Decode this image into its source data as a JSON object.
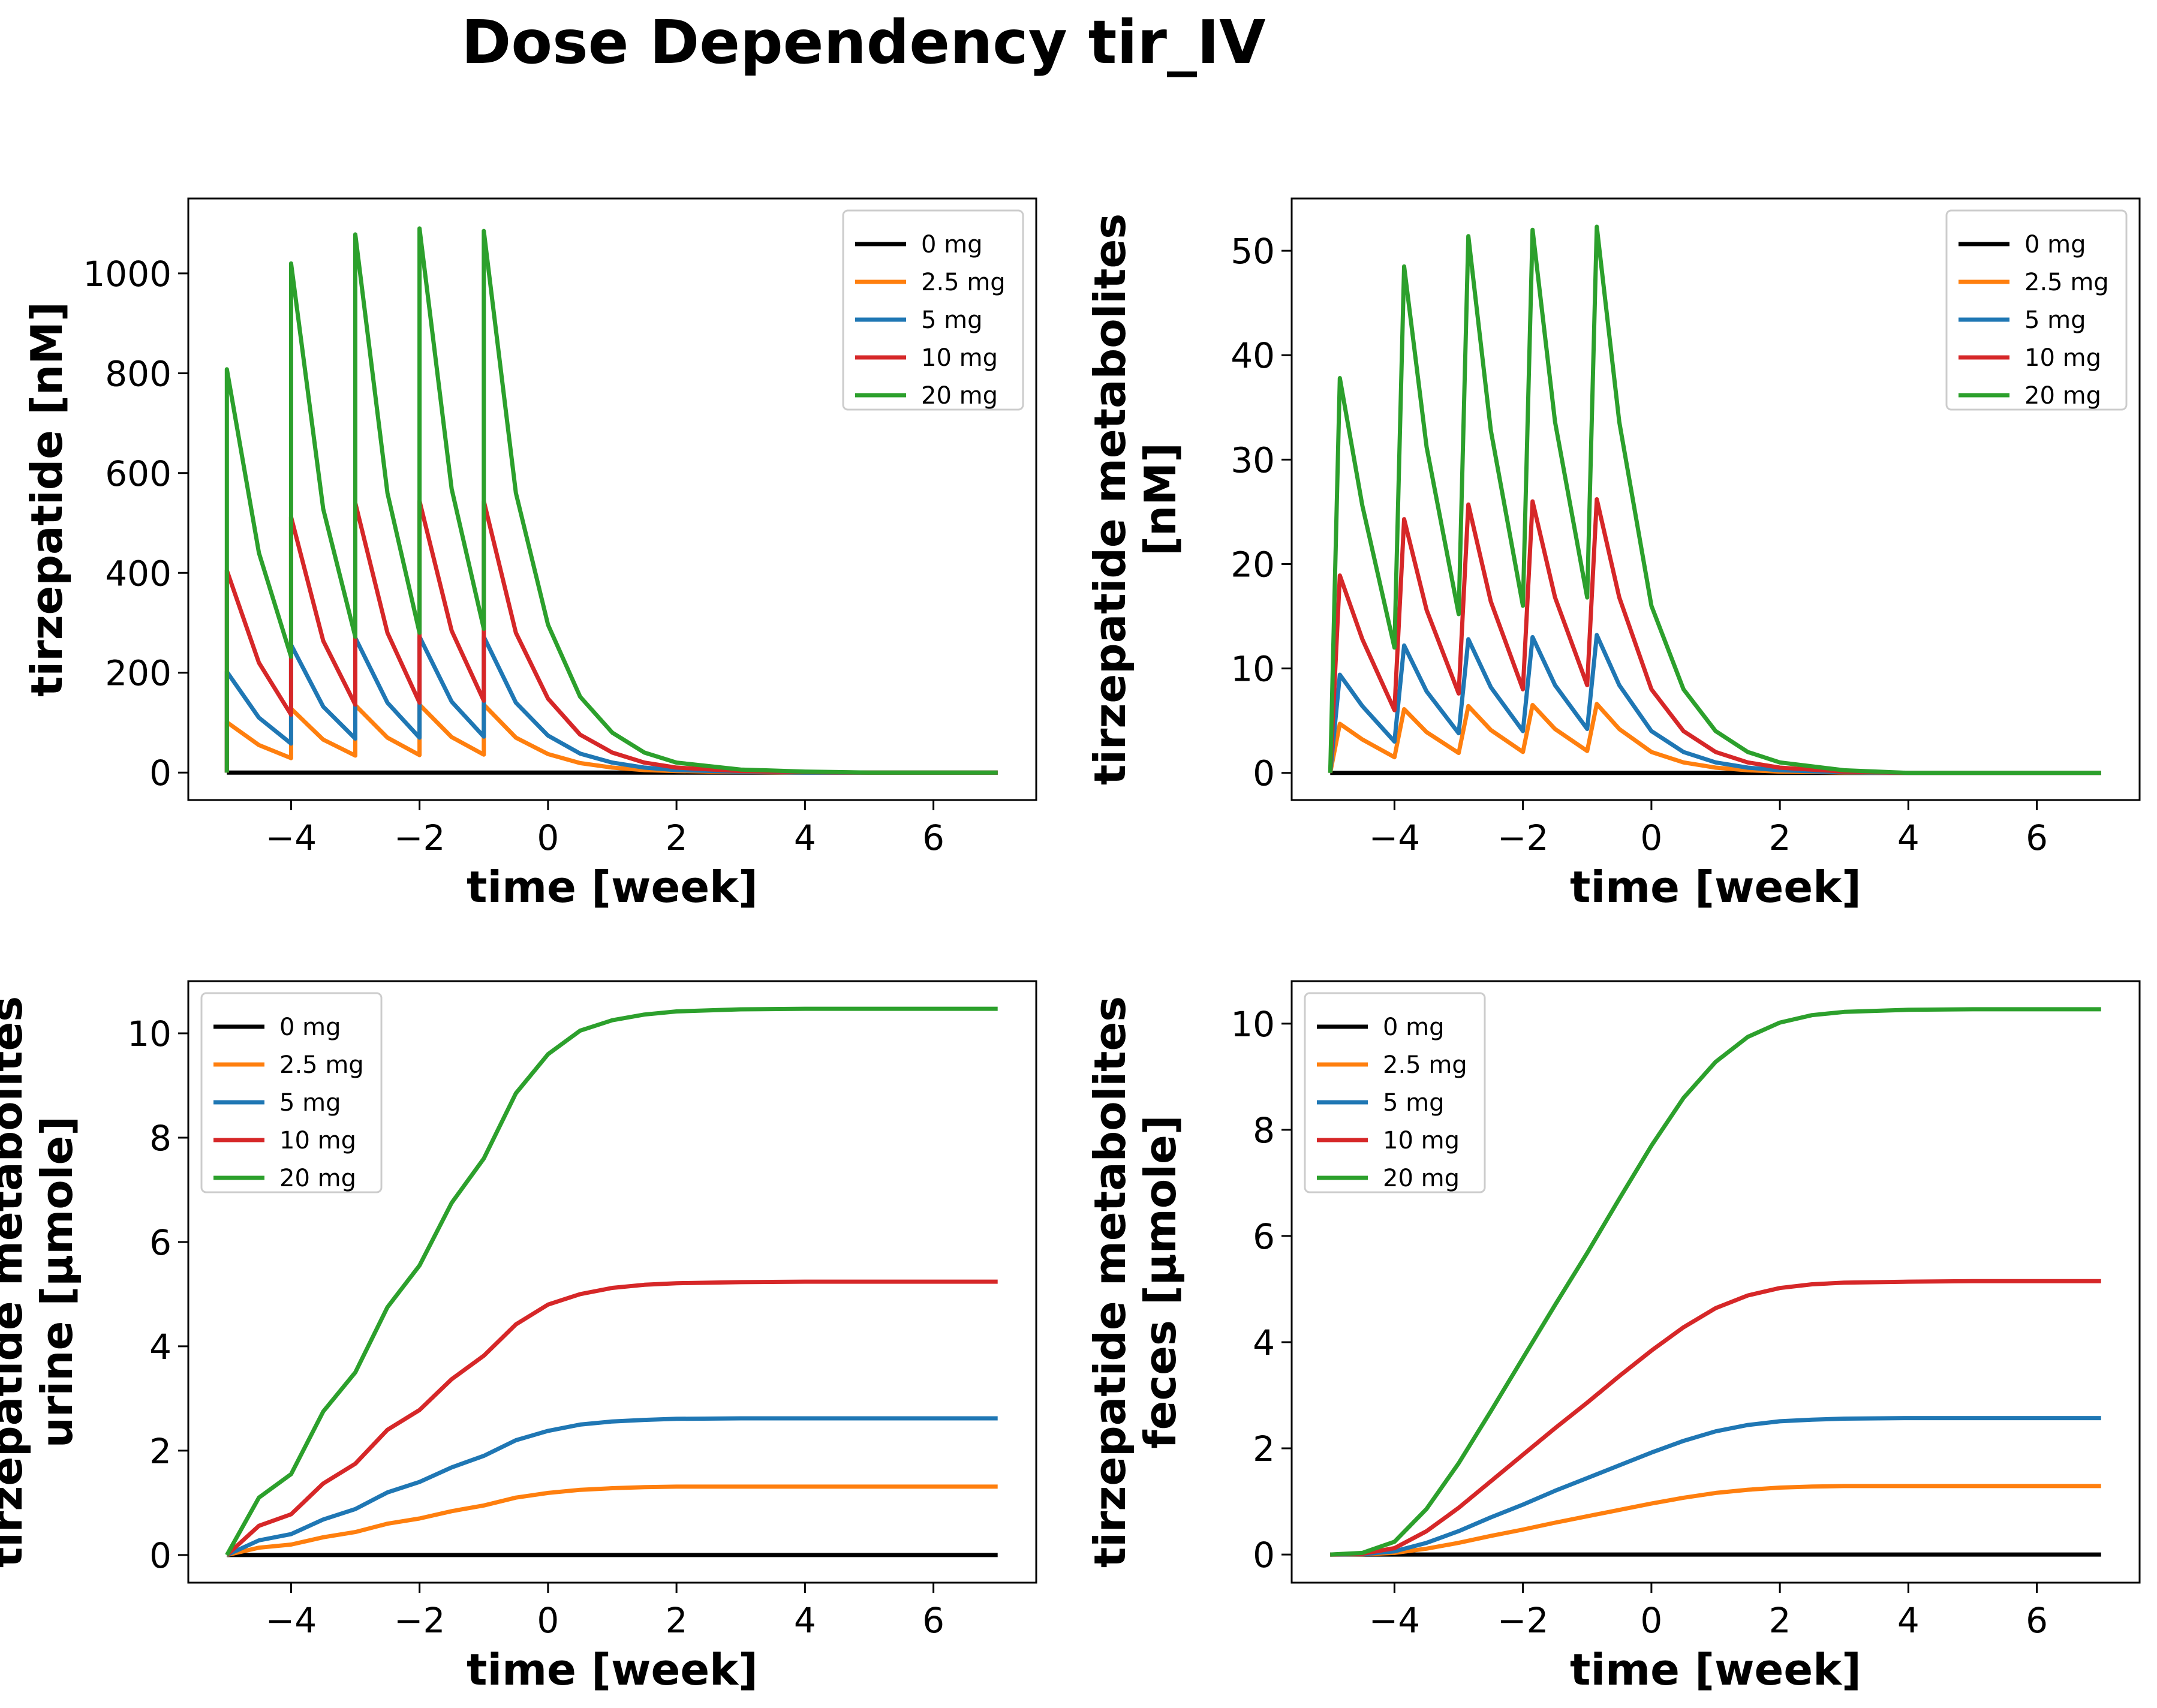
{
  "figure": {
    "title": "Dose Dependency tir_IV"
  },
  "series_meta": [
    {
      "name": "0 mg",
      "color": "#000000"
    },
    {
      "name": "2.5 mg",
      "color": "#ff7f0e"
    },
    {
      "name": "5 mg",
      "color": "#1f77b4"
    },
    {
      "name": "10 mg",
      "color": "#d62728"
    },
    {
      "name": "20 mg",
      "color": "#2ca02c"
    }
  ],
  "chart_data": [
    {
      "type": "line",
      "xlabel": "time [week]",
      "ylabel": [
        "tirzepatide [nM]"
      ],
      "xlim": [
        -5.6,
        7.6
      ],
      "ylim": [
        -55,
        1150
      ],
      "xticks": [
        -4,
        -2,
        0,
        2,
        4,
        6
      ],
      "xtick_labels": [
        "−4",
        "−2",
        "0",
        "2",
        "4",
        "6"
      ],
      "yticks": [
        0,
        200,
        400,
        600,
        800,
        1000
      ],
      "ytick_labels": [
        "0",
        "200",
        "400",
        "600",
        "800",
        "1000"
      ],
      "legend": "top-right",
      "series": [
        {
          "name": "0 mg",
          "x": [
            -5,
            7
          ],
          "y": [
            0,
            0
          ]
        },
        {
          "name": "2.5 mg",
          "x": [
            -5.0,
            -5.0,
            -4.5,
            -4.0,
            -4.0,
            -3.5,
            -3.0,
            -3.0,
            -2.5,
            -2.0,
            -2.0,
            -1.5,
            -1.0,
            -1.0,
            -0.5,
            0.0,
            0.5,
            1.0,
            1.5,
            2.0,
            3.0,
            4.0,
            5.0,
            7.0
          ],
          "y": [
            0,
            101,
            55,
            29,
            128,
            66,
            34,
            135,
            70,
            35,
            136,
            71,
            36,
            136,
            70,
            37,
            19,
            10,
            5,
            3,
            1,
            0,
            0,
            0
          ]
        },
        {
          "name": "5 mg",
          "x": [
            -5.0,
            -5.0,
            -4.5,
            -4.0,
            -4.0,
            -3.5,
            -3.0,
            -3.0,
            -2.5,
            -2.0,
            -2.0,
            -1.5,
            -1.0,
            -1.0,
            -0.5,
            0.0,
            0.5,
            1.0,
            1.5,
            2.0,
            3.0,
            4.0,
            5.0,
            7.0
          ],
          "y": [
            0,
            202,
            110,
            58,
            256,
            132,
            68,
            270,
            140,
            70,
            272,
            142,
            72,
            272,
            140,
            74,
            38,
            20,
            10,
            5,
            2,
            0,
            0,
            0
          ]
        },
        {
          "name": "10 mg",
          "x": [
            -5.0,
            -5.0,
            -4.5,
            -4.0,
            -4.0,
            -3.5,
            -3.0,
            -3.0,
            -2.5,
            -2.0,
            -2.0,
            -1.5,
            -1.0,
            -1.0,
            -0.5,
            0.0,
            0.5,
            1.0,
            1.5,
            2.0,
            3.0,
            4.0,
            5.0,
            7.0
          ],
          "y": [
            0,
            405,
            220,
            116,
            512,
            264,
            136,
            540,
            280,
            140,
            544,
            284,
            144,
            544,
            280,
            148,
            76,
            40,
            20,
            10,
            3,
            1,
            0,
            0
          ]
        },
        {
          "name": "20 mg",
          "x": [
            -5.0,
            -5.0,
            -4.5,
            -4.0,
            -4.0,
            -3.5,
            -3.0,
            -3.0,
            -2.5,
            -2.0,
            -2.0,
            -1.5,
            -1.0,
            -1.0,
            -0.5,
            0.0,
            0.5,
            1.0,
            1.5,
            2.0,
            3.0,
            4.0,
            5.0,
            7.0
          ],
          "y": [
            0,
            808,
            440,
            232,
            1020,
            528,
            272,
            1078,
            560,
            280,
            1090,
            568,
            288,
            1085,
            560,
            296,
            152,
            80,
            40,
            20,
            6,
            2,
            0,
            0
          ]
        }
      ]
    },
    {
      "type": "line",
      "xlabel": "time [week]",
      "ylabel": [
        "tirzepatide metabolites",
        "[nM]"
      ],
      "xlim": [
        -5.6,
        7.6
      ],
      "ylim": [
        -2.6,
        55
      ],
      "xticks": [
        -4,
        -2,
        0,
        2,
        4,
        6
      ],
      "xtick_labels": [
        "−4",
        "−2",
        "0",
        "2",
        "4",
        "6"
      ],
      "yticks": [
        0,
        10,
        20,
        30,
        40,
        50
      ],
      "ytick_labels": [
        "0",
        "10",
        "20",
        "30",
        "40",
        "50"
      ],
      "legend": "top-right",
      "series": [
        {
          "name": "0 mg",
          "x": [
            -5,
            7
          ],
          "y": [
            0,
            0
          ]
        },
        {
          "name": "2.5 mg",
          "x": [
            -5.0,
            -4.85,
            -4.5,
            -4.0,
            -3.85,
            -3.5,
            -3.0,
            -2.85,
            -2.5,
            -2.0,
            -1.85,
            -1.5,
            -1.0,
            -0.85,
            -0.5,
            0.0,
            0.5,
            1.0,
            1.5,
            2.0,
            3.0,
            4.0,
            7.0
          ],
          "y": [
            0,
            4.7,
            3.2,
            1.5,
            6.1,
            3.9,
            1.9,
            6.4,
            4.1,
            2.0,
            6.5,
            4.2,
            2.1,
            6.6,
            4.2,
            2.0,
            1.0,
            0.5,
            0.25,
            0.12,
            0.03,
            0,
            0
          ]
        },
        {
          "name": "5 mg",
          "x": [
            -5.0,
            -4.85,
            -4.5,
            -4.0,
            -3.85,
            -3.5,
            -3.0,
            -2.85,
            -2.5,
            -2.0,
            -1.85,
            -1.5,
            -1.0,
            -0.85,
            -0.5,
            0.0,
            0.5,
            1.0,
            1.5,
            2.0,
            3.0,
            4.0,
            7.0
          ],
          "y": [
            0,
            9.4,
            6.4,
            3.0,
            12.2,
            7.8,
            3.8,
            12.8,
            8.2,
            4.0,
            13.0,
            8.4,
            4.2,
            13.2,
            8.4,
            4.0,
            2.0,
            1.0,
            0.5,
            0.25,
            0.06,
            0,
            0
          ]
        },
        {
          "name": "10 mg",
          "x": [
            -5.0,
            -4.85,
            -4.5,
            -4.0,
            -3.85,
            -3.5,
            -3.0,
            -2.85,
            -2.5,
            -2.0,
            -1.85,
            -1.5,
            -1.0,
            -0.85,
            -0.5,
            0.0,
            0.5,
            1.0,
            1.5,
            2.0,
            3.0,
            4.0,
            7.0
          ],
          "y": [
            0,
            18.9,
            12.8,
            6.0,
            24.3,
            15.6,
            7.6,
            25.7,
            16.4,
            8.0,
            26.0,
            16.8,
            8.4,
            26.2,
            16.8,
            8.0,
            4.0,
            2.0,
            1.0,
            0.5,
            0.12,
            0,
            0
          ]
        },
        {
          "name": "20 mg",
          "x": [
            -5.0,
            -4.85,
            -4.5,
            -4.0,
            -3.85,
            -3.5,
            -3.0,
            -2.85,
            -2.5,
            -2.0,
            -1.85,
            -1.5,
            -1.0,
            -0.85,
            -0.5,
            0.0,
            0.5,
            1.0,
            1.5,
            2.0,
            3.0,
            4.0,
            7.0
          ],
          "y": [
            0,
            37.8,
            25.6,
            12.0,
            48.5,
            31.2,
            15.2,
            51.4,
            32.8,
            16.0,
            52.0,
            33.6,
            16.8,
            52.3,
            33.6,
            16.0,
            8.0,
            4.0,
            2.0,
            1.0,
            0.25,
            0,
            0
          ]
        }
      ]
    },
    {
      "type": "line",
      "xlabel": "time [week]",
      "ylabel": [
        "tirzepatide metabolites",
        "urine [µmole]"
      ],
      "xlim": [
        -5.6,
        7.6
      ],
      "ylim": [
        -0.53,
        11.0
      ],
      "xticks": [
        -4,
        -2,
        0,
        2,
        4,
        6
      ],
      "xtick_labels": [
        "−4",
        "−2",
        "0",
        "2",
        "4",
        "6"
      ],
      "yticks": [
        0,
        2,
        4,
        6,
        8,
        10
      ],
      "ytick_labels": [
        "0",
        "2",
        "4",
        "6",
        "8",
        "10"
      ],
      "legend": "top-left",
      "series": [
        {
          "name": "0 mg",
          "x": [
            -5,
            7
          ],
          "y": [
            0,
            0
          ]
        },
        {
          "name": "2.5 mg",
          "x": [
            -5.0,
            -4.5,
            -4.0,
            -3.5,
            -3.0,
            -2.5,
            -2.0,
            -1.5,
            -1.0,
            -0.5,
            0.0,
            0.5,
            1.0,
            1.5,
            2.0,
            3.0,
            4.0,
            7.0
          ],
          "y": [
            0,
            0.14,
            0.2,
            0.34,
            0.44,
            0.6,
            0.7,
            0.84,
            0.95,
            1.1,
            1.19,
            1.25,
            1.28,
            1.3,
            1.31,
            1.31,
            1.31,
            1.31
          ]
        },
        {
          "name": "5 mg",
          "x": [
            -5.0,
            -4.5,
            -4.0,
            -3.5,
            -3.0,
            -2.5,
            -2.0,
            -1.5,
            -1.0,
            -0.5,
            0.0,
            0.5,
            1.0,
            1.5,
            2.0,
            3.0,
            4.0,
            7.0
          ],
          "y": [
            0,
            0.28,
            0.4,
            0.68,
            0.88,
            1.2,
            1.4,
            1.68,
            1.9,
            2.2,
            2.38,
            2.5,
            2.56,
            2.59,
            2.61,
            2.62,
            2.62,
            2.62
          ]
        },
        {
          "name": "10 mg",
          "x": [
            -5.0,
            -4.5,
            -4.0,
            -3.5,
            -3.0,
            -2.5,
            -2.0,
            -1.5,
            -1.0,
            -0.5,
            0.0,
            0.5,
            1.0,
            1.5,
            2.0,
            3.0,
            4.0,
            7.0
          ],
          "y": [
            0,
            0.56,
            0.78,
            1.37,
            1.75,
            2.4,
            2.78,
            3.37,
            3.82,
            4.42,
            4.8,
            5.0,
            5.12,
            5.18,
            5.21,
            5.23,
            5.24,
            5.24
          ]
        },
        {
          "name": "20 mg",
          "x": [
            -5.0,
            -4.5,
            -4.0,
            -3.5,
            -3.0,
            -2.5,
            -2.0,
            -1.5,
            -1.0,
            -0.5,
            0.0,
            0.5,
            1.0,
            1.5,
            2.0,
            3.0,
            4.0,
            7.0
          ],
          "y": [
            0,
            1.1,
            1.55,
            2.75,
            3.5,
            4.75,
            5.55,
            6.75,
            7.6,
            8.85,
            9.6,
            10.05,
            10.25,
            10.36,
            10.42,
            10.46,
            10.47,
            10.47
          ]
        }
      ]
    },
    {
      "type": "line",
      "xlabel": "time [week]",
      "ylabel": [
        "tirzepatide metabolites",
        "feces [µmole]"
      ],
      "xlim": [
        -5.6,
        7.6
      ],
      "ylim": [
        -0.53,
        10.8
      ],
      "xticks": [
        -4,
        -2,
        0,
        2,
        4,
        6
      ],
      "xtick_labels": [
        "−4",
        "−2",
        "0",
        "2",
        "4",
        "6"
      ],
      "yticks": [
        0,
        2,
        4,
        6,
        8,
        10
      ],
      "ytick_labels": [
        "0",
        "2",
        "4",
        "6",
        "8",
        "10"
      ],
      "legend": "top-left",
      "series": [
        {
          "name": "0 mg",
          "x": [
            -5,
            7
          ],
          "y": [
            0,
            0
          ]
        },
        {
          "name": "2.5 mg",
          "x": [
            -5.0,
            -4.5,
            -4.0,
            -3.5,
            -3.0,
            -2.5,
            -2.0,
            -1.5,
            -1.0,
            -0.5,
            0.0,
            0.5,
            1.0,
            1.5,
            2.0,
            2.5,
            3.0,
            4.0,
            5.0,
            7.0
          ],
          "y": [
            0,
            0.003,
            0.03,
            0.11,
            0.22,
            0.35,
            0.47,
            0.6,
            0.72,
            0.84,
            0.96,
            1.07,
            1.16,
            1.22,
            1.26,
            1.28,
            1.29,
            1.29,
            1.29,
            1.29
          ]
        },
        {
          "name": "5 mg",
          "x": [
            -5.0,
            -4.5,
            -4.0,
            -3.5,
            -3.0,
            -2.5,
            -2.0,
            -1.5,
            -1.0,
            -0.5,
            0.0,
            0.5,
            1.0,
            1.5,
            2.0,
            2.5,
            3.0,
            4.0,
            5.0,
            7.0
          ],
          "y": [
            0,
            0.007,
            0.06,
            0.22,
            0.44,
            0.7,
            0.94,
            1.2,
            1.44,
            1.68,
            1.92,
            2.14,
            2.32,
            2.44,
            2.51,
            2.54,
            2.56,
            2.57,
            2.57,
            2.57
          ]
        },
        {
          "name": "10 mg",
          "x": [
            -5.0,
            -4.5,
            -4.0,
            -3.5,
            -3.0,
            -2.5,
            -2.0,
            -1.5,
            -1.0,
            -0.5,
            0.0,
            0.5,
            1.0,
            1.5,
            2.0,
            2.5,
            3.0,
            4.0,
            5.0,
            7.0
          ],
          "y": [
            0,
            0.015,
            0.12,
            0.44,
            0.88,
            1.38,
            1.88,
            2.38,
            2.86,
            3.36,
            3.84,
            4.28,
            4.64,
            4.88,
            5.02,
            5.09,
            5.12,
            5.14,
            5.15,
            5.15
          ]
        },
        {
          "name": "20 mg",
          "x": [
            -5.0,
            -4.5,
            -4.0,
            -3.5,
            -3.0,
            -2.5,
            -2.0,
            -1.5,
            -1.0,
            -0.5,
            0.0,
            0.5,
            1.0,
            1.5,
            2.0,
            2.5,
            3.0,
            4.0,
            5.0,
            7.0
          ],
          "y": [
            0,
            0.03,
            0.24,
            0.86,
            1.72,
            2.7,
            3.7,
            4.7,
            5.68,
            6.7,
            7.7,
            8.6,
            9.28,
            9.75,
            10.02,
            10.16,
            10.22,
            10.26,
            10.27,
            10.27
          ]
        }
      ]
    }
  ]
}
